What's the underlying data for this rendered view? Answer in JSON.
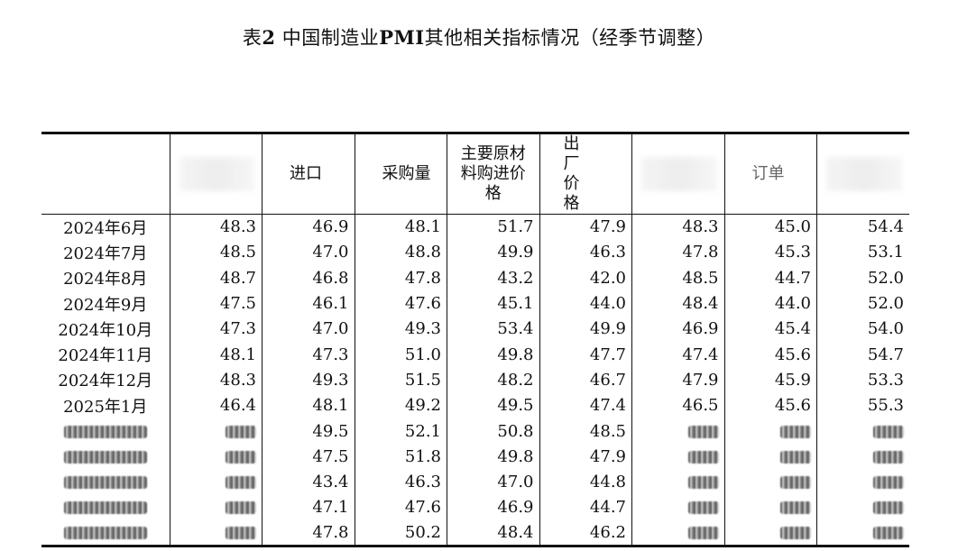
{
  "title": {
    "prefix": "表",
    "number": "2",
    "mid": " 中国制造业",
    "pmi": "PMI",
    "suffix": "其他相关指标情况（经季节调整）"
  },
  "header": {
    "col3_label": "进口",
    "col4_label": "采购量",
    "col5_label": "主要原材料购进价格",
    "col6_label": "出厂价格",
    "col8_label_fragment": "订单"
  },
  "rows": [
    {
      "month": "2024年6月",
      "v": [
        "48.3",
        "46.9",
        "48.1",
        "51.7",
        "47.9",
        "48.3",
        "45.0",
        "54.4"
      ]
    },
    {
      "month": "2024年7月",
      "v": [
        "48.5",
        "47.0",
        "48.8",
        "49.9",
        "46.3",
        "47.8",
        "45.3",
        "53.1"
      ]
    },
    {
      "month": "2024年8月",
      "v": [
        "48.7",
        "46.8",
        "47.8",
        "43.2",
        "42.0",
        "48.5",
        "44.7",
        "52.0"
      ]
    },
    {
      "month": "2024年9月",
      "v": [
        "47.5",
        "46.1",
        "47.6",
        "45.1",
        "44.0",
        "48.4",
        "44.0",
        "52.0"
      ]
    },
    {
      "month": "2024年10月",
      "v": [
        "47.3",
        "47.0",
        "49.3",
        "53.4",
        "49.9",
        "46.9",
        "45.4",
        "54.0"
      ]
    },
    {
      "month": "2024年11月",
      "v": [
        "48.1",
        "47.3",
        "51.0",
        "49.8",
        "47.7",
        "47.4",
        "45.6",
        "54.7"
      ]
    },
    {
      "month": "2024年12月",
      "v": [
        "48.3",
        "49.3",
        "51.5",
        "48.2",
        "46.7",
        "47.9",
        "45.9",
        "53.3"
      ]
    },
    {
      "month": "2025年1月",
      "v": [
        "46.4",
        "48.1",
        "49.2",
        "49.5",
        "47.4",
        "46.5",
        "45.6",
        "55.3"
      ]
    },
    {
      "month": "",
      "v": [
        "",
        "49.5",
        "52.1",
        "50.8",
        "48.5",
        "",
        "",
        ""
      ]
    },
    {
      "month": "",
      "v": [
        "",
        "47.5",
        "51.8",
        "49.8",
        "47.9",
        "",
        "",
        ""
      ]
    },
    {
      "month": "",
      "v": [
        "",
        "43.4",
        "46.3",
        "47.0",
        "44.8",
        "",
        "",
        ""
      ]
    },
    {
      "month": "",
      "v": [
        "",
        "47.1",
        "47.6",
        "46.9",
        "44.7",
        "",
        "",
        ""
      ]
    },
    {
      "month": "",
      "v": [
        "",
        "47.8",
        "50.2",
        "48.4",
        "46.2",
        "",
        "",
        ""
      ]
    }
  ]
}
